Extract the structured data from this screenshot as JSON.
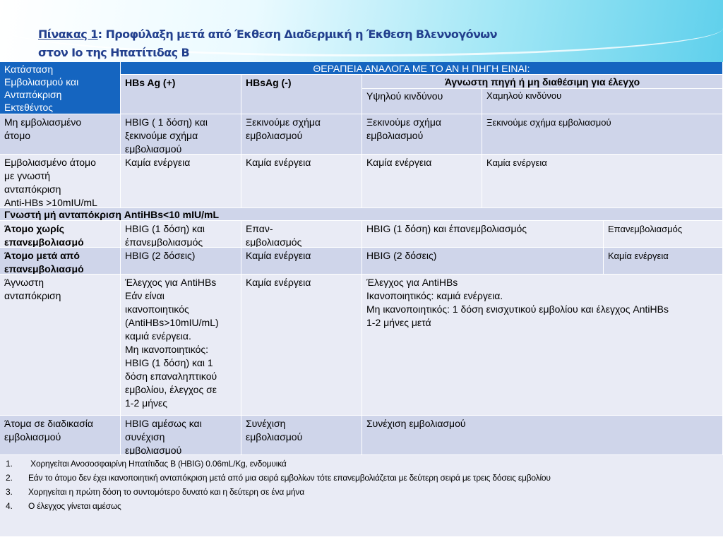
{
  "title": {
    "label": "Πίνακας 1",
    "line1": ": Προφύλαξη μετά από  Έκθεση Διαδερμική η Έκθεση Βλεννογόνων",
    "line2": "στον Ιο της Ηπατίτιδας Β"
  },
  "header": {
    "status": "Κατάσταση\nΕμβολιασμού και\nΑνταπόκριση\nΕκτεθέντος",
    "therapy": "ΘΕΡΑΠΕΙΑ ΑΝΑΛΟΓΑ ΜΕ ΤΟ ΑΝ Η ΠΗΓΗ ΕΙΝΑΙ:",
    "hbs_pos": "HBs Ag (+)",
    "hbs_neg": "HBsAg (-)",
    "unknown": "Άγνωστη πηγή ή μη διαθέσιμη για έλεγχο",
    "high": "Υψηλού κινδύνου",
    "low": "Χαμηλού κινδύνου"
  },
  "rows": {
    "unvaccinated": [
      "Μη εμβολιασμένο\nάτομο",
      "HBIG ( 1 δόση) και\nξεκινούμε σχήμα\nεμβολιασμού",
      "Ξεκινούμε σχήμα\nεμβολιασμού",
      "Ξεκινούμε σχήμα\nεμβολιασμού",
      "Ξεκινούμε σχήμα εμβολιασμού"
    ],
    "vaccinated": [
      "Εμβολιασμένο άτομο\nμε γνωστή\nανταπόκριση\nAnti-HBs >10mIU/mL",
      "Καμία ενέργεια",
      "Καμία ενέργεια",
      "Καμία ενέργεια",
      "Καμία ενέργεια"
    ],
    "nonresponse_header": "Γνωστή μή ανταπόκριση AntiHBs<10 mIU/mL",
    "no_revacc": [
      "Άτομο χωρίς\nεπανεμβολιασμό",
      "HBIG (1 δόση) και\nέπανεμβολιασμός",
      "Επαν-\nεμβολιασμός",
      "HBIG (1 δόση) και έπανεμβολιασμός",
      "Επανεμβολιασμός"
    ],
    "after_revacc": [
      "Άτομο μετά από\nεπανεμβολιασμό",
      "HBIG (2 δόσεις)",
      "Καμία ενέργεια",
      "HBIG (2 δόσεις)",
      "Καμία ενέργεια"
    ],
    "unknown_response": [
      "Άγνωστη\nανταπόκριση",
      "Έλεγχος για AntiHBs\nΕάν είναι\nικανοποιητικός\n(AntiHBs>10mIU/mL)\nκαμιά ενέργεια.\nΜη ικανοποιητικός:\nHBIG    (1 δόση) και 1\nδόση επαναληπτικού\nεμβολίου, έλεγχος σε\n1-2 μήνες",
      "Καμία ενέργεια",
      "Έλεγχος για AntiHBs\nΙκανοποιητικός:  καμιά ενέργεια.\nΜη ικανοποιητικός: 1 δόση ενισχυτικού εμβολίου και έλεγχος AntiHBs\n1-2 μήνες μετά"
    ],
    "in_progress": [
      "Άτομα σε διαδικασία\nεμβολιασμού",
      "HBIG αμέσως και\nσυνέχιση\nεμβολιασμού",
      "Συνέχιση\nεμβολιασμού",
      "Συνέχιση εμβολιασμού"
    ]
  },
  "notes": [
    {
      "n": "1.",
      "text": " Χορηγείται Ανοσοσφαιρίνη Ηπατίτιδας Β (HBIG) 0.06mL/Kg, ενδομυικά"
    },
    {
      "n": "2.",
      "text": "Εάν το άτομο δεν έχει ικανοποιητική ανταπόκριση μετά από μια σειρά εμβολίων τότε επανεμβολιάζεται με δεύτερη σειρά με τρεις δόσεις εμβολίου"
    },
    {
      "n": "3.",
      "text": "Χορηγείται η πρώτη δόση το συντομότερο δυνατό και η δεύτερη σε ένα μήνα"
    },
    {
      "n": "4.",
      "text": "Ο έλεγχος γίνεται αμέσως"
    }
  ],
  "colors": {
    "header": "#1565c0",
    "title": "#23408e",
    "row_dark": "#cfd5ea",
    "row_light": "#e9ebf5"
  }
}
